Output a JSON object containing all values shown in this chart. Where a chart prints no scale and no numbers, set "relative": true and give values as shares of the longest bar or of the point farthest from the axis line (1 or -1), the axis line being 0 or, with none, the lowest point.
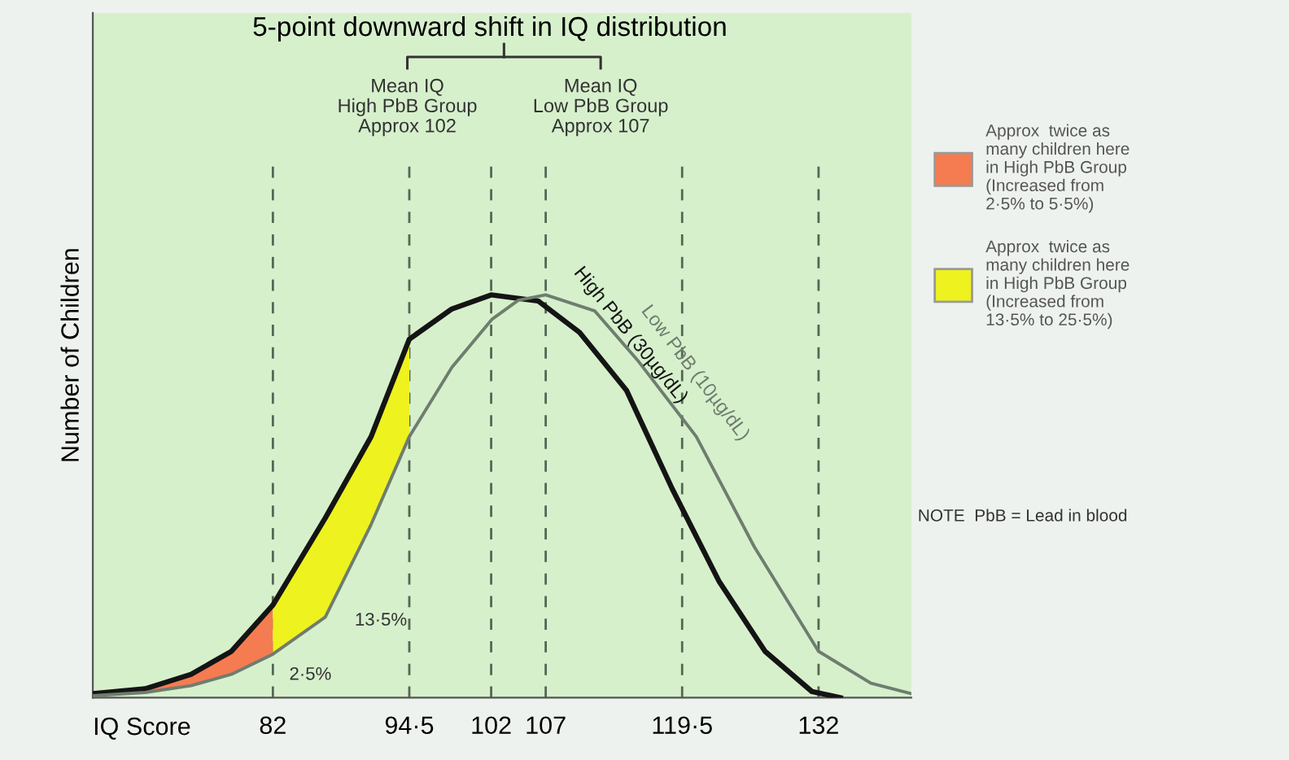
{
  "chart_data": {
    "type": "line",
    "relative": true,
    "title": "5-point downward shift in IQ distribution",
    "xlabel": "IQ Score",
    "ylabel": "Number of Children",
    "xlim": [
      65.5,
      140.5
    ],
    "xticks": [
      82,
      {
        "value": 94.5,
        "label": "94·5"
      },
      102,
      107,
      {
        "value": 119.5,
        "label": "119·5"
      },
      132
    ],
    "grid": "x",
    "line_style": "solid",
    "legend": "right",
    "series": [
      {
        "name": "High PbB (30µg/dL)",
        "color": "#141414",
        "x": [
          65.5,
          70.3,
          74.5,
          78.2,
          82,
          86.8,
          91,
          94.5,
          98.4,
          102,
          106.3,
          110.1,
          114.4,
          118.6,
          122.9,
          127.1,
          131.4,
          134
        ],
        "values": [
          0.01,
          0.022,
          0.058,
          0.115,
          0.23,
          0.446,
          0.648,
          0.89,
          0.965,
          1.0,
          0.985,
          0.907,
          0.763,
          0.518,
          0.288,
          0.115,
          0.015,
          0.0
        ]
      },
      {
        "name": "Low PbB (10µg/dL)",
        "color": "#6f7d6f",
        "x": [
          65.5,
          70.3,
          74.5,
          78.2,
          82,
          86.8,
          91,
          94.5,
          98.4,
          102.1,
          104.5,
          107,
          111.5,
          115.5,
          120.8,
          126.1,
          132,
          136.8,
          140.5
        ],
        "values": [
          0.005,
          0.013,
          0.03,
          0.058,
          0.108,
          0.2,
          0.43,
          0.648,
          0.82,
          0.94,
          0.987,
          1.0,
          0.96,
          0.835,
          0.648,
          0.375,
          0.115,
          0.036,
          0.01
        ]
      },
      {
        "type": "area",
        "name": "Approx  twice as\nmany children here\nin High PbB Group\n(Increased from\n2·5% to 5·5%)",
        "color": "#f47c50",
        "x": [
          65.5,
          70.3,
          74.5,
          78.2,
          82
        ],
        "values": [
          0.01,
          0.022,
          0.058,
          0.115,
          0.23
        ]
      },
      {
        "type": "area",
        "name": "Approx  twice as\nmany children here\nin High PbB Group\n(Increased from\n13·5% to 25·5%)",
        "color": "#eef21e",
        "x": [
          82,
          86.8,
          91,
          94.5
        ],
        "values": [
          0.23,
          0.446,
          0.648,
          0.89
        ]
      }
    ],
    "annotations": [
      "Mean IQ\nHigh PbB Group\nApprox 102",
      "Mean IQ\nLow PbB Group\nApprox 107",
      "13·5%",
      "2·5%",
      "NOTE  PbB = Lead in blood"
    ]
  }
}
